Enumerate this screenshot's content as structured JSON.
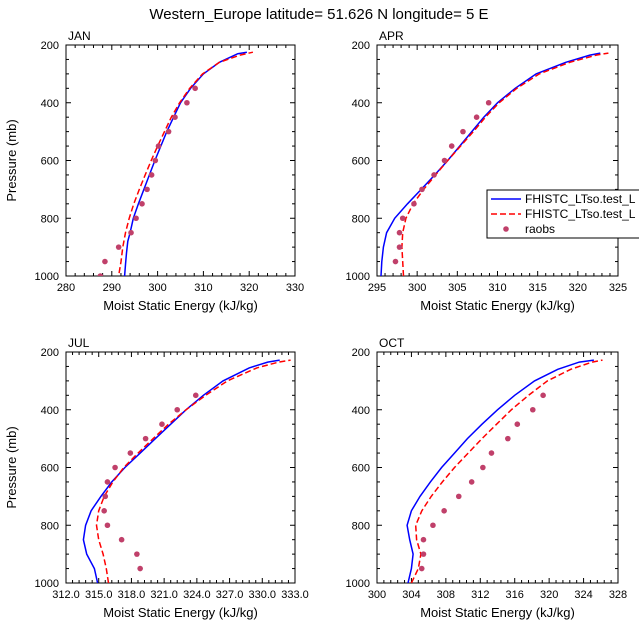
{
  "title": "Western_Europe  latitude= 51.626 N longitude= 5 E",
  "legend": {
    "placement": "right, beside APR panel",
    "entries": [
      {
        "label": "FHISTC_LTso.test_L",
        "color": "#0000ff",
        "style": "solid"
      },
      {
        "label": "FHISTC_LTso.test_L",
        "color": "#ff0000",
        "style": "dashed"
      },
      {
        "label": "raobs",
        "color": "#c0406a",
        "style": "marker"
      }
    ]
  },
  "chart_data": [
    {
      "type": "line",
      "panel": "JAN",
      "title": "JAN",
      "xlabel": "Moist Static Energy (kJ/kg)",
      "ylabel": "Pressure (mb)",
      "xlim": [
        280,
        330
      ],
      "ylim": [
        1000,
        200
      ],
      "xticks": [
        280,
        290,
        300,
        310,
        320,
        330
      ],
      "xticklabels": [
        "280",
        "290",
        "300",
        "310",
        "320",
        "330"
      ],
      "yticks": [
        200,
        400,
        600,
        800,
        1000
      ],
      "series": [
        {
          "legend_index": 0,
          "color": "#0000ff",
          "style": "solid",
          "points": [
            [
              292.8,
              1000
            ],
            [
              293,
              960
            ],
            [
              293.2,
              920
            ],
            [
              293.5,
              880
            ],
            [
              294,
              850
            ],
            [
              294.7,
              800
            ],
            [
              295.8,
              750
            ],
            [
              297,
              700
            ],
            [
              298.2,
              650
            ],
            [
              299.4,
              600
            ],
            [
              300.7,
              550
            ],
            [
              302,
              500
            ],
            [
              303.5,
              450
            ],
            [
              305,
              400
            ],
            [
              307.2,
              350
            ],
            [
              310,
              300
            ],
            [
              313.5,
              260
            ],
            [
              317.5,
              230
            ],
            [
              319.5,
              225
            ]
          ]
        },
        {
          "legend_index": 1,
          "color": "#ff0000",
          "style": "dashed",
          "points": [
            [
              291.6,
              990
            ],
            [
              292,
              950
            ],
            [
              292.4,
              900
            ],
            [
              293,
              850
            ],
            [
              293.8,
              800
            ],
            [
              294.8,
              750
            ],
            [
              296,
              700
            ],
            [
              297.3,
              650
            ],
            [
              298.6,
              600
            ],
            [
              300,
              550
            ],
            [
              301.5,
              500
            ],
            [
              303,
              450
            ],
            [
              304.8,
              400
            ],
            [
              307,
              350
            ],
            [
              309.8,
              300
            ],
            [
              313.5,
              260
            ],
            [
              318,
              235
            ],
            [
              320.8,
              225
            ]
          ]
        },
        {
          "legend_index": 2,
          "color": "#c0406a",
          "style": "marker",
          "points": [
            [
              287.5,
              1000
            ],
            [
              288.5,
              950
            ],
            [
              291.5,
              900
            ],
            [
              294.2,
              850
            ],
            [
              295.3,
              800
            ],
            [
              296.6,
              750
            ],
            [
              297.7,
              700
            ],
            [
              298.7,
              650
            ],
            [
              299.5,
              600
            ],
            [
              300.2,
              550
            ],
            [
              302.4,
              500
            ],
            [
              303.8,
              450
            ],
            [
              306.4,
              400
            ],
            [
              308.2,
              350
            ]
          ]
        }
      ]
    },
    {
      "type": "line",
      "panel": "APR",
      "title": "APR",
      "xlabel": "Moist Static Energy (kJ/kg)",
      "ylabel": "",
      "xlim": [
        295,
        325
      ],
      "ylim": [
        1000,
        200
      ],
      "xticks": [
        295,
        300,
        305,
        310,
        315,
        320,
        325
      ],
      "xticklabels": [
        "295",
        "300",
        "305",
        "310",
        "315",
        "320",
        "325"
      ],
      "yticks": [
        200,
        400,
        600,
        800,
        1000
      ],
      "series": [
        {
          "legend_index": 0,
          "color": "#0000ff",
          "style": "solid",
          "points": [
            [
              295.5,
              1000
            ],
            [
              295.6,
              950
            ],
            [
              295.8,
              900
            ],
            [
              296.2,
              850
            ],
            [
              297.2,
              800
            ],
            [
              298.8,
              750
            ],
            [
              300.5,
              700
            ],
            [
              302.2,
              650
            ],
            [
              303.8,
              600
            ],
            [
              305.3,
              550
            ],
            [
              306.8,
              500
            ],
            [
              308.3,
              450
            ],
            [
              310,
              400
            ],
            [
              312.2,
              350
            ],
            [
              314.8,
              300
            ],
            [
              318.5,
              260
            ],
            [
              321.5,
              235
            ],
            [
              322.8,
              228
            ]
          ]
        },
        {
          "legend_index": 1,
          "color": "#ff0000",
          "style": "dashed",
          "points": [
            [
              298.3,
              1000
            ],
            [
              298.2,
              950
            ],
            [
              298.1,
              900
            ],
            [
              298.2,
              850
            ],
            [
              298.6,
              800
            ],
            [
              299.5,
              750
            ],
            [
              300.8,
              700
            ],
            [
              302.3,
              650
            ],
            [
              303.8,
              600
            ],
            [
              305.4,
              550
            ],
            [
              307,
              500
            ],
            [
              308.5,
              450
            ],
            [
              310.2,
              400
            ],
            [
              312.4,
              350
            ],
            [
              315.2,
              300
            ],
            [
              319,
              260
            ],
            [
              322.3,
              235
            ],
            [
              323.8,
              228
            ]
          ]
        },
        {
          "legend_index": 2,
          "color": "#c0406a",
          "style": "marker",
          "points": [
            [
              297.3,
              950
            ],
            [
              297.8,
              900
            ],
            [
              297.8,
              850
            ],
            [
              298.2,
              800
            ],
            [
              299.6,
              750
            ],
            [
              300.6,
              700
            ],
            [
              302.1,
              650
            ],
            [
              303.4,
              600
            ],
            [
              304.3,
              550
            ],
            [
              305.7,
              500
            ],
            [
              307.4,
              450
            ],
            [
              308.9,
              400
            ]
          ]
        }
      ]
    },
    {
      "type": "line",
      "panel": "JUL",
      "title": "JUL",
      "xlabel": "Moist Static Energy (kJ/kg)",
      "ylabel": "Pressure (mb)",
      "xlim": [
        312,
        333
      ],
      "ylim": [
        1000,
        200
      ],
      "xticks": [
        312,
        315,
        318,
        321,
        324,
        327,
        330,
        333
      ],
      "xticklabels": [
        "312.0",
        "315.0",
        "318.0",
        "321.0",
        "324.0",
        "327.0",
        "330.0",
        "333.0"
      ],
      "yticks": [
        200,
        400,
        600,
        800,
        1000
      ],
      "series": [
        {
          "legend_index": 0,
          "color": "#0000ff",
          "style": "solid",
          "points": [
            [
              314.9,
              1000
            ],
            [
              314.6,
              950
            ],
            [
              313.9,
              900
            ],
            [
              313.6,
              850
            ],
            [
              313.8,
              800
            ],
            [
              314.3,
              750
            ],
            [
              315.2,
              700
            ],
            [
              316.2,
              650
            ],
            [
              317.4,
              600
            ],
            [
              318.8,
              550
            ],
            [
              320.2,
              500
            ],
            [
              321.6,
              450
            ],
            [
              323,
              400
            ],
            [
              324.6,
              350
            ],
            [
              326.4,
              300
            ],
            [
              328.8,
              255
            ],
            [
              330.5,
              235
            ],
            [
              331.6,
              228
            ]
          ]
        },
        {
          "legend_index": 1,
          "color": "#ff0000",
          "style": "dashed",
          "points": [
            [
              315.9,
              1000
            ],
            [
              315.7,
              950
            ],
            [
              315.4,
              900
            ],
            [
              315,
              850
            ],
            [
              314.8,
              800
            ],
            [
              315,
              750
            ],
            [
              315.5,
              700
            ],
            [
              316.3,
              650
            ],
            [
              317.3,
              600
            ],
            [
              318.6,
              550
            ],
            [
              320,
              500
            ],
            [
              321.4,
              450
            ],
            [
              323,
              400
            ],
            [
              324.8,
              350
            ],
            [
              326.8,
              300
            ],
            [
              329.5,
              255
            ],
            [
              331.5,
              235
            ],
            [
              332.6,
              228
            ]
          ]
        },
        {
          "legend_index": 2,
          "color": "#c0406a",
          "style": "marker",
          "points": [
            [
              318.8,
              950
            ],
            [
              318.5,
              900
            ],
            [
              317.1,
              850
            ],
            [
              315.8,
              800
            ],
            [
              315.5,
              750
            ],
            [
              315.6,
              700
            ],
            [
              315.8,
              650
            ],
            [
              316.5,
              600
            ],
            [
              317.9,
              550
            ],
            [
              319.3,
              500
            ],
            [
              320.8,
              450
            ],
            [
              322.2,
              400
            ],
            [
              323.9,
              350
            ]
          ]
        }
      ]
    },
    {
      "type": "line",
      "panel": "OCT",
      "title": "OCT",
      "xlabel": "Moist Static Energy (kJ/kg)",
      "ylabel": "",
      "xlim": [
        300,
        328
      ],
      "ylim": [
        1000,
        200
      ],
      "xticks": [
        300,
        304,
        308,
        312,
        316,
        320,
        324,
        328
      ],
      "xticklabels": [
        "300",
        "304",
        "308",
        "312",
        "316",
        "320",
        "324",
        "328"
      ],
      "yticks": [
        200,
        400,
        600,
        800,
        1000
      ],
      "series": [
        {
          "legend_index": 0,
          "color": "#0000ff",
          "style": "solid",
          "points": [
            [
              303.6,
              1000
            ],
            [
              304,
              950
            ],
            [
              304.2,
              900
            ],
            [
              303.8,
              850
            ],
            [
              303.5,
              800
            ],
            [
              304,
              750
            ],
            [
              305,
              700
            ],
            [
              306.2,
              650
            ],
            [
              307.5,
              600
            ],
            [
              309,
              550
            ],
            [
              310.5,
              500
            ],
            [
              312.2,
              450
            ],
            [
              314,
              400
            ],
            [
              316,
              350
            ],
            [
              318.3,
              300
            ],
            [
              321,
              260
            ],
            [
              323.5,
              235
            ],
            [
              325.2,
              228
            ]
          ]
        },
        {
          "legend_index": 1,
          "color": "#ff0000",
          "style": "dashed",
          "points": [
            [
              304,
              1000
            ],
            [
              304.8,
              950
            ],
            [
              305.1,
              900
            ],
            [
              304.6,
              850
            ],
            [
              304.5,
              800
            ],
            [
              305.2,
              750
            ],
            [
              306.3,
              700
            ],
            [
              307.6,
              650
            ],
            [
              309,
              600
            ],
            [
              310.6,
              550
            ],
            [
              312.2,
              500
            ],
            [
              313.9,
              450
            ],
            [
              315.6,
              400
            ],
            [
              317.6,
              350
            ],
            [
              319.8,
              300
            ],
            [
              322.5,
              260
            ],
            [
              325,
              235
            ],
            [
              326.2,
              228
            ]
          ]
        },
        {
          "legend_index": 2,
          "color": "#c0406a",
          "style": "marker",
          "points": [
            [
              305.2,
              950
            ],
            [
              305.4,
              900
            ],
            [
              305.4,
              850
            ],
            [
              306.5,
              800
            ],
            [
              307.8,
              750
            ],
            [
              309.5,
              700
            ],
            [
              311,
              650
            ],
            [
              312.3,
              600
            ],
            [
              313.3,
              550
            ],
            [
              315.2,
              500
            ],
            [
              316.3,
              450
            ],
            [
              318.1,
              400
            ],
            [
              319.3,
              350
            ]
          ]
        }
      ]
    }
  ]
}
